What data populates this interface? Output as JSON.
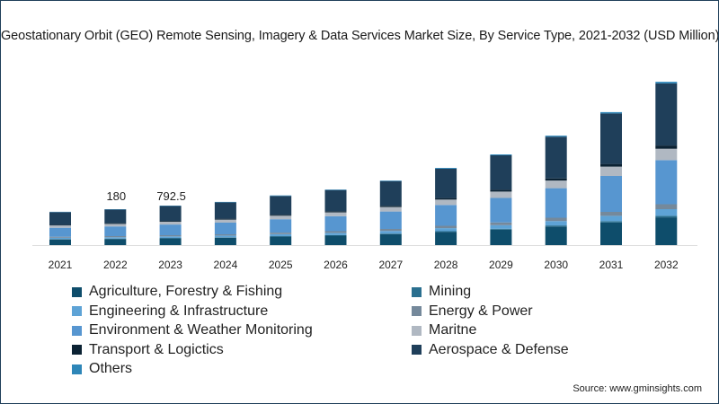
{
  "chart_data": {
    "type": "bar",
    "stacked": true,
    "title": "Geostationary Orbit (GEO) Remote Sensing, Imagery & Data Services Market Size, By Service Type, 2021-2032 (USD Million)",
    "categories": [
      "2021",
      "2022",
      "2023",
      "2024",
      "2025",
      "2026",
      "2027",
      "2028",
      "2029",
      "2030",
      "2031",
      "2032"
    ],
    "ylim": [
      0,
      1900
    ],
    "series": [
      {
        "name": "Agriculture, Forestry & Fishing",
        "color": "#0e4d6b",
        "values": [
          63,
          68,
          75,
          82,
          94,
          105,
          122,
          146,
          172,
          207,
          252,
          309
        ]
      },
      {
        "name": "Mining",
        "color": "#2a6f8f",
        "values": [
          4,
          4,
          4,
          5,
          6,
          6,
          7,
          9,
          10,
          12,
          15,
          18
        ]
      },
      {
        "name": "Engineering & Infrastructure",
        "color": "#5ea3d6",
        "values": [
          15,
          16,
          18,
          19,
          22,
          25,
          29,
          34,
          40,
          49,
          59,
          73
        ]
      },
      {
        "name": "Energy & Power",
        "color": "#75899b",
        "values": [
          11,
          12,
          13,
          14,
          17,
          19,
          22,
          26,
          30,
          37,
          44,
          55
        ]
      },
      {
        "name": "Environment & Weather Monitoring",
        "color": "#5796d0",
        "values": [
          100,
          108,
          119,
          130,
          149,
          167,
          194,
          232,
          273,
          329,
          400,
          491
        ]
      },
      {
        "name": "Maritne",
        "color": "#b0b8c2",
        "values": [
          26,
          28,
          31,
          34,
          39,
          43,
          50,
          60,
          71,
          85,
          104,
          127
        ]
      },
      {
        "name": "Transport & Logictics",
        "color": "#0b2233",
        "values": [
          7,
          8,
          9,
          10,
          11,
          12,
          14,
          17,
          20,
          24,
          30,
          36
        ]
      },
      {
        "name": "Aerospace & Defense",
        "color": "#1f3f5a",
        "values": [
          141,
          152,
          167,
          182,
          209,
          236,
          274,
          327,
          384,
          464,
          562,
          692
        ]
      },
      {
        "name": "Others",
        "color": "#2e86b8",
        "values": [
          4,
          4,
          4,
          5,
          6,
          6,
          7,
          9,
          10,
          12,
          15,
          18
        ]
      }
    ],
    "annotations": [
      {
        "category": "2022",
        "text": "180"
      },
      {
        "category": "2023",
        "text": "792.5"
      }
    ],
    "legend_position": "bottom",
    "grid": false
  },
  "source": "Source: www.gminsights.com"
}
